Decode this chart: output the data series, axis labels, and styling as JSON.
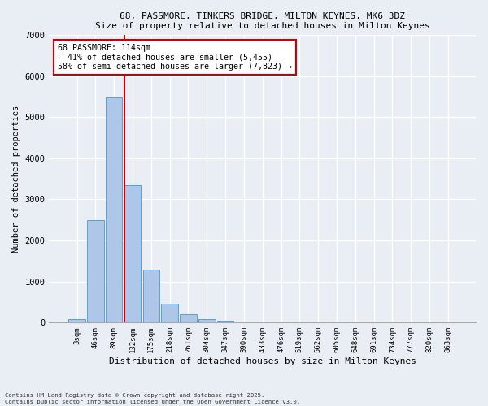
{
  "title_line1": "68, PASSMORE, TINKERS BRIDGE, MILTON KEYNES, MK6 3DZ",
  "title_line2": "Size of property relative to detached houses in Milton Keynes",
  "xlabel": "Distribution of detached houses by size in Milton Keynes",
  "ylabel": "Number of detached properties",
  "bar_labels": [
    "3sqm",
    "46sqm",
    "89sqm",
    "132sqm",
    "175sqm",
    "218sqm",
    "261sqm",
    "304sqm",
    "347sqm",
    "390sqm",
    "433sqm",
    "476sqm",
    "519sqm",
    "562sqm",
    "605sqm",
    "648sqm",
    "691sqm",
    "734sqm",
    "777sqm",
    "820sqm",
    "863sqm"
  ],
  "bar_values": [
    80,
    2500,
    5480,
    3340,
    1300,
    470,
    210,
    90,
    50,
    0,
    0,
    0,
    0,
    0,
    0,
    0,
    0,
    0,
    0,
    0,
    0
  ],
  "bar_color": "#aec6e8",
  "bar_edge_color": "#5a9fd4",
  "background_color": "#e8eef4",
  "grid_color": "#ffffff",
  "vline_color": "#cc0000",
  "vline_x_index": 2.55,
  "annotation_text": "68 PASSMORE: 114sqm\n← 41% of detached houses are smaller (5,455)\n58% of semi-detached houses are larger (7,823) →",
  "annotation_box_color": "#ffffff",
  "annotation_box_edge": "#cc0000",
  "ylim": [
    0,
    7000
  ],
  "yticks": [
    0,
    1000,
    2000,
    3000,
    4000,
    5000,
    6000,
    7000
  ],
  "footer_line1": "Contains HM Land Registry data © Crown copyright and database right 2025.",
  "footer_line2": "Contains public sector information licensed under the Open Government Licence v3.0."
}
